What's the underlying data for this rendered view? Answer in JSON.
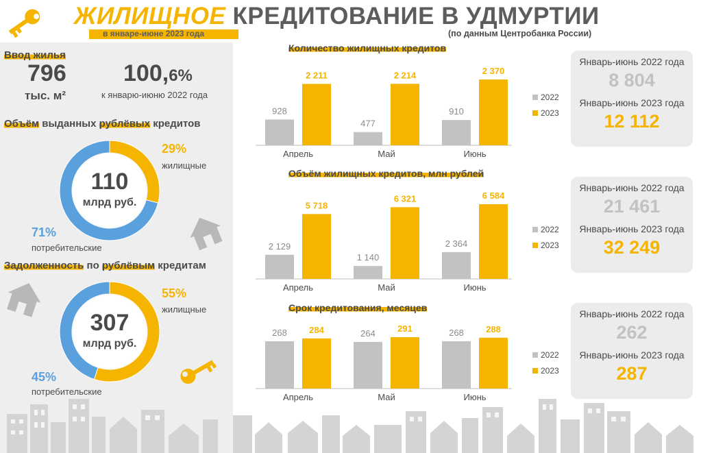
{
  "header": {
    "title_accent": "ЖИЛИЩНОЕ",
    "title_rest": " КРЕДИТОВАНИЕ В УДМУРТИИ",
    "period": "в январе-июне 2023 года",
    "source": "(по данным Центробанка России)"
  },
  "housing": {
    "label": "Ввод жилья",
    "value": "796",
    "unit": "тыс. м²",
    "percent_main": "100,",
    "percent_tail": "6%",
    "percent_caption": "к январю-июню 2022 года"
  },
  "issued": {
    "title_parts": [
      "Объём",
      " выданных ",
      "рублёвых",
      " кредитов"
    ],
    "center_value": "110",
    "center_unit": "млрд руб.",
    "housing_pct": "29%",
    "housing_label": "жилищные",
    "consumer_pct": "71%",
    "consumer_label": "потребительские"
  },
  "debt": {
    "title_parts": [
      "Задолженность",
      " по ",
      "рублёвым",
      " кредитам"
    ],
    "center_value": "307",
    "center_unit": "млрд руб.",
    "housing_pct": "55%",
    "housing_label": "жилищные",
    "consumer_pct": "45%",
    "consumer_label": "потребительские"
  },
  "colors": {
    "accent": "#f5b400",
    "gray_bar": "#c2c2c2",
    "blue": "#5aa0dc",
    "text": "#4a4a4a",
    "card_bg": "#ececec",
    "left_bg": "#eeeeee"
  },
  "chart_data": [
    {
      "type": "bar",
      "title": "Количество жилищных кредитов",
      "categories": [
        "Апрель",
        "Май",
        "Июнь"
      ],
      "series": [
        {
          "name": "2022",
          "values": [
            928,
            477,
            910
          ],
          "labels": [
            "928",
            "477",
            "910"
          ]
        },
        {
          "name": "2023",
          "values": [
            2211,
            2214,
            2370
          ],
          "labels": [
            "2 211",
            "2 214",
            "2 370"
          ]
        }
      ],
      "legend": "right",
      "summary": {
        "label_2022": "Январь-июнь 2022 года",
        "value_2022": "8 804",
        "label_2023": "Январь-июнь 2023 года",
        "value_2023": "12 112"
      }
    },
    {
      "type": "bar",
      "title": "Объём жилищных кредитов, млн рублей",
      "categories": [
        "Апрель",
        "Май",
        "Июнь"
      ],
      "series": [
        {
          "name": "2022",
          "values": [
            2129,
            1140,
            2364
          ],
          "labels": [
            "2 129",
            "1 140",
            "2 364"
          ]
        },
        {
          "name": "2023",
          "values": [
            5718,
            6321,
            6584
          ],
          "labels": [
            "5 718",
            "6 321",
            "6 584"
          ]
        }
      ],
      "legend": "right",
      "summary": {
        "label_2022": "Январь-июнь 2022 года",
        "value_2022": "21 461",
        "label_2023": "Январь-июнь 2023 года",
        "value_2023": "32 249"
      }
    },
    {
      "type": "bar",
      "title": "Срок кредитования, месяцев",
      "categories": [
        "Апрель",
        "Май",
        "Июнь"
      ],
      "series": [
        {
          "name": "2022",
          "values": [
            268,
            264,
            268
          ],
          "labels": [
            "268",
            "264",
            "268"
          ]
        },
        {
          "name": "2023",
          "values": [
            284,
            291,
            288
          ],
          "labels": [
            "284",
            "291",
            "288"
          ]
        }
      ],
      "legend": "right",
      "summary": {
        "label_2022": "Январь-июнь 2022 года",
        "value_2022": "262",
        "label_2023": "Январь-июнь 2023 года",
        "value_2023": "287"
      }
    },
    {
      "type": "pie",
      "title": "Объём выданных рублёвых кредитов",
      "categories": [
        "жилищные",
        "потребительские"
      ],
      "values": [
        29,
        71
      ]
    },
    {
      "type": "pie",
      "title": "Задолженность по рублёвым кредитам",
      "categories": [
        "жилищные",
        "потребительские"
      ],
      "values": [
        55,
        45
      ]
    }
  ]
}
